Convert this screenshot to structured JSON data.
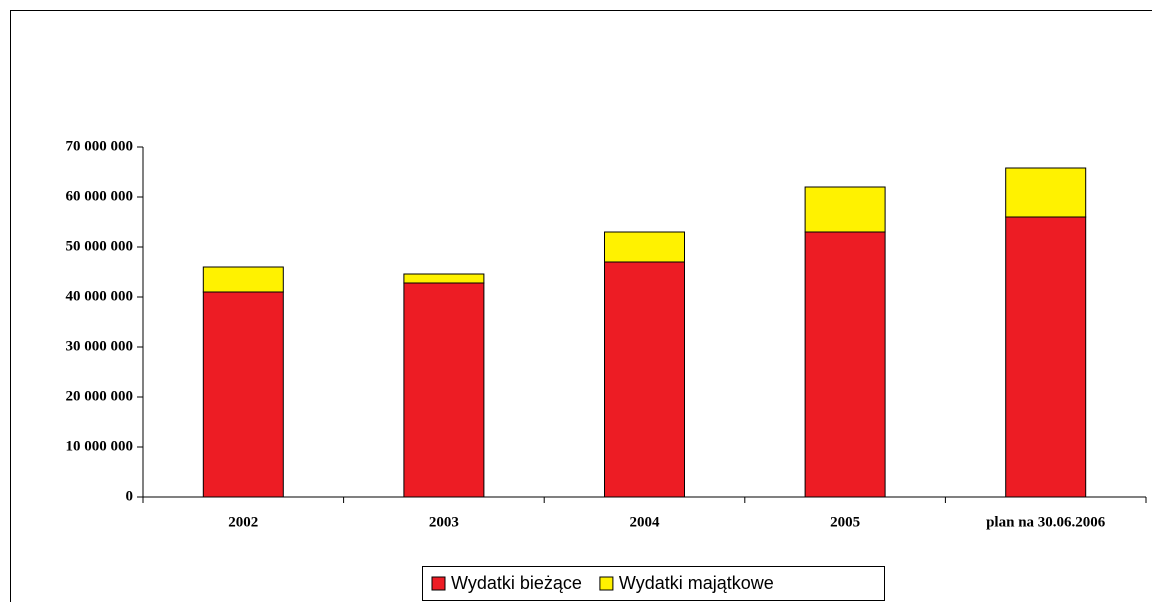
{
  "chart_data": {
    "type": "stacked_bar",
    "categories": [
      "2002",
      "2003",
      "2004",
      "2005",
      "plan na 30.06.2006"
    ],
    "series": [
      {
        "name": "Wydatki bieżące",
        "color": "#ed1c24",
        "values": [
          41000000,
          42800000,
          47000000,
          53000000,
          56000000
        ]
      },
      {
        "name": "Wydatki majątkowe",
        "color": "#fff200",
        "values": [
          5000000,
          1800000,
          6000000,
          9000000,
          9800000
        ]
      }
    ],
    "ylim": [
      0,
      70000000
    ],
    "yticks": [
      0,
      {
        "value": 10000000,
        "label": "10 000 000"
      },
      {
        "value": 20000000,
        "label": "20 000 000"
      },
      {
        "value": 30000000,
        "label": "30 000 000"
      },
      {
        "value": 40000000,
        "label": "40 000 000"
      },
      {
        "value": 50000000,
        "label": "50 000 000"
      },
      {
        "value": 60000000,
        "label": "60 000 000"
      },
      {
        "value": 70000000,
        "label": "70 000 000"
      }
    ],
    "legend": "bottom"
  }
}
